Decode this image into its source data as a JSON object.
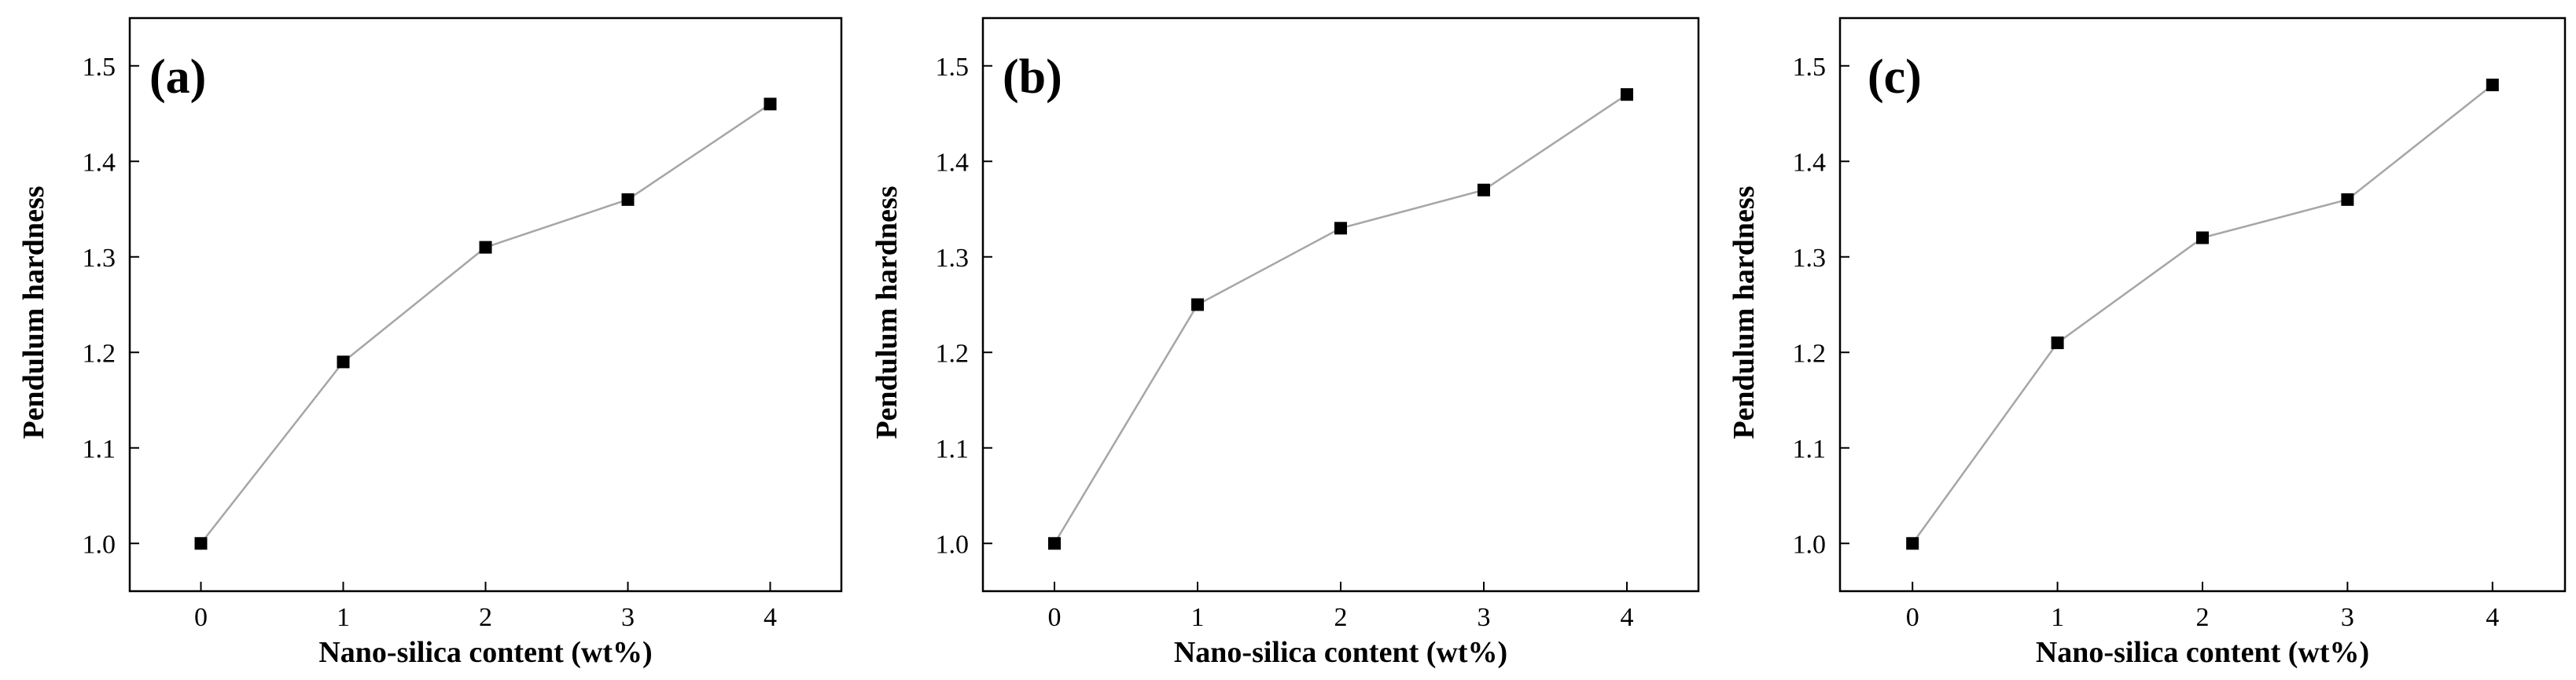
{
  "chart_data": [
    {
      "type": "line",
      "panel_label": "(a)",
      "xlabel": "Nano-silica content (wt%)",
      "ylabel": "Pendulum hardness",
      "x": [
        0,
        1,
        2,
        3,
        4
      ],
      "x_tick_labels": [
        "0",
        "1",
        "2",
        "3",
        "4"
      ],
      "y_tick_labels": [
        "1.0",
        "1.1",
        "1.2",
        "1.3",
        "1.4",
        "1.5"
      ],
      "xlim": [
        -0.5,
        4.5
      ],
      "ylim": [
        0.95,
        1.55
      ],
      "grid": false,
      "series": [
        {
          "values": [
            1.0,
            1.19,
            1.31,
            1.36,
            1.46
          ]
        }
      ]
    },
    {
      "type": "line",
      "panel_label": "(b)",
      "xlabel": "Nano-silica content (wt%)",
      "ylabel": "Pendulum hardness",
      "x": [
        0,
        1,
        2,
        3,
        4
      ],
      "x_tick_labels": [
        "0",
        "1",
        "2",
        "3",
        "4"
      ],
      "y_tick_labels": [
        "1.0",
        "1.1",
        "1.2",
        "1.3",
        "1.4",
        "1.5"
      ],
      "xlim": [
        -0.5,
        4.5
      ],
      "ylim": [
        0.95,
        1.55
      ],
      "grid": false,
      "series": [
        {
          "values": [
            1.0,
            1.25,
            1.33,
            1.37,
            1.47
          ]
        }
      ]
    },
    {
      "type": "line",
      "panel_label": "(c)",
      "xlabel": "Nano-silica content (wt%)",
      "ylabel": "Pendulum hardness",
      "x": [
        0,
        1,
        2,
        3,
        4
      ],
      "x_tick_labels": [
        "0",
        "1",
        "2",
        "3",
        "4"
      ],
      "y_tick_labels": [
        "1.0",
        "1.1",
        "1.2",
        "1.3",
        "1.4",
        "1.5"
      ],
      "xlim": [
        -0.5,
        4.5
      ],
      "ylim": [
        0.95,
        1.55
      ],
      "grid": false,
      "series": [
        {
          "values": [
            1.0,
            1.21,
            1.32,
            1.36,
            1.48
          ]
        }
      ]
    }
  ]
}
